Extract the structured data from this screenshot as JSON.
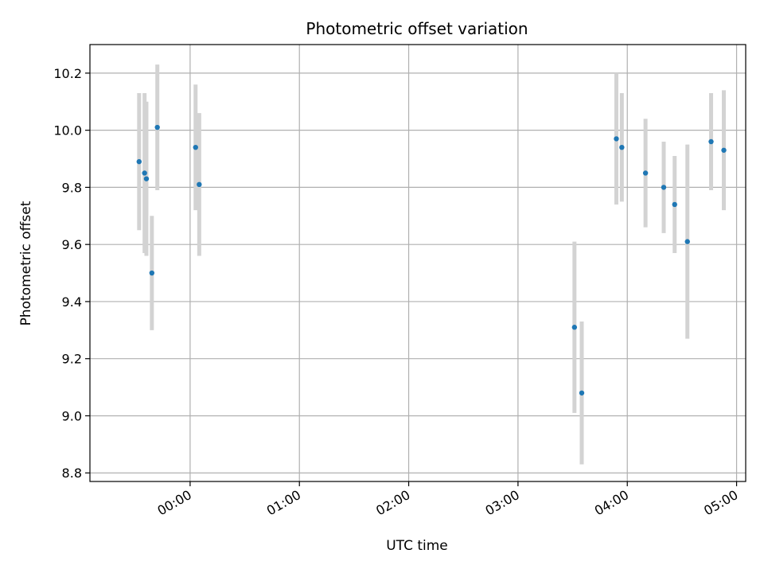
{
  "chart_data": {
    "type": "scatter",
    "title": "Photometric offset variation",
    "xlabel": "UTC time",
    "ylabel": "Photometric offset",
    "x_unit": "UTC time (HH:MM)",
    "xlim": [
      "23:05",
      "05:05"
    ],
    "ylim": [
      8.77,
      10.3
    ],
    "x_ticks": [
      {
        "label": "00:00",
        "value": "00:00"
      },
      {
        "label": "01:00",
        "value": "01:00"
      },
      {
        "label": "02:00",
        "value": "02:00"
      },
      {
        "label": "03:00",
        "value": "03:00"
      },
      {
        "label": "04:00",
        "value": "04:00"
      },
      {
        "label": "05:00",
        "value": "05:00"
      }
    ],
    "y_ticks": [
      "8.8",
      "9.0",
      "9.2",
      "9.4",
      "9.6",
      "9.8",
      "10.0",
      "10.2"
    ],
    "grid": true,
    "colors": {
      "points": "#1f77b4",
      "errorbars": "#d3d3d3",
      "grid": "#b0b0b0"
    },
    "points": [
      {
        "x": "23:39",
        "y": 9.5,
        "err": 0.2
      },
      {
        "x": "23:32",
        "y": 9.89,
        "err": 0.24
      },
      {
        "x": "23:35",
        "y": 9.85,
        "err": 0.28
      },
      {
        "x": "23:36",
        "y": 9.83,
        "err": 0.27
      },
      {
        "x": "23:42",
        "y": 10.01,
        "err": 0.22
      },
      {
        "x": "00:03",
        "y": 9.94,
        "err": 0.22
      },
      {
        "x": "00:05",
        "y": 9.81,
        "err": 0.25
      },
      {
        "x": "03:31",
        "y": 9.31,
        "err": 0.3
      },
      {
        "x": "03:35",
        "y": 9.08,
        "err": 0.25
      },
      {
        "x": "03:54",
        "y": 9.97,
        "err": 0.23
      },
      {
        "x": "03:57",
        "y": 9.94,
        "err": 0.19
      },
      {
        "x": "04:10",
        "y": 9.85,
        "err": 0.19
      },
      {
        "x": "04:20",
        "y": 9.8,
        "err": 0.16
      },
      {
        "x": "04:26",
        "y": 9.74,
        "err": 0.17
      },
      {
        "x": "04:33",
        "y": 9.61,
        "err": 0.34
      },
      {
        "x": "04:46",
        "y": 9.96,
        "err": 0.17
      },
      {
        "x": "04:53",
        "y": 9.93,
        "err": 0.21
      }
    ]
  }
}
